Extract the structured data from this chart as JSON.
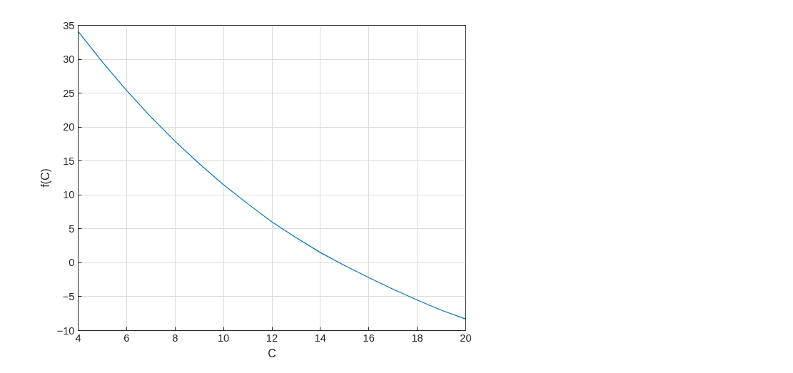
{
  "chart_data": {
    "type": "line",
    "xlabel": "C",
    "ylabel": "f(C)",
    "x": [
      4,
      5,
      6,
      7,
      8,
      9,
      10,
      11,
      12,
      13,
      14,
      15,
      16,
      17,
      18,
      19,
      20
    ],
    "series": [
      {
        "color": "#0072bd",
        "values": [
          34.1,
          29.6,
          25.4,
          21.5,
          17.9,
          14.6,
          11.5,
          8.7,
          6.0,
          3.7,
          1.5,
          -0.4,
          -2.2,
          -3.9,
          -5.5,
          -7.0,
          -8.3
        ]
      }
    ],
    "xlim": [
      4,
      20
    ],
    "xticks": [
      4,
      6,
      8,
      10,
      12,
      14,
      16,
      18,
      20
    ],
    "ylim": [
      -10,
      35
    ],
    "yticks": [
      -10,
      -5,
      0,
      5,
      10,
      15,
      20,
      25,
      30,
      35
    ],
    "grid": true,
    "line_style": "solid",
    "marker": "none"
  }
}
